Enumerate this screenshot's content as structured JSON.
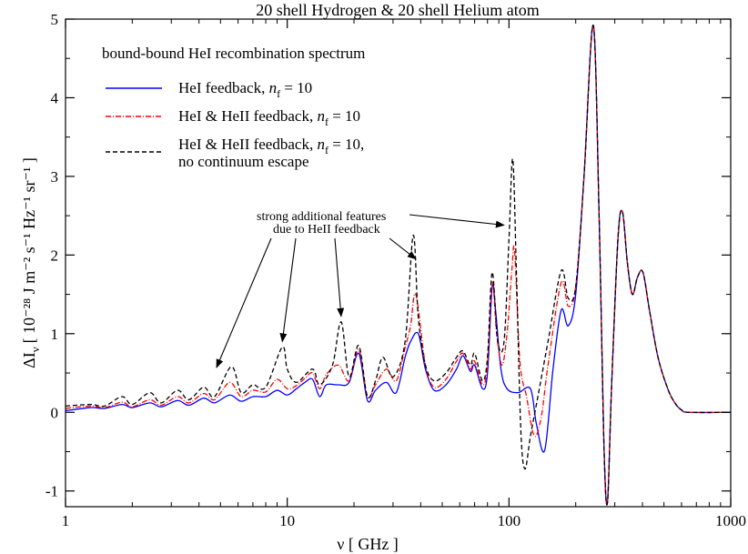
{
  "chart_data": {
    "type": "line",
    "title": "20 shell Hydrogen & 20 shell Helium atom",
    "xlabel": "ν [ GHz ]",
    "ylabel": "ΔI",
    "ylabel_sub": "ν",
    "ylabel_units": "[ 10⁻²⁸ J m⁻² s⁻¹ Hz⁻¹ sr⁻¹ ]",
    "x_scale": "log",
    "xlim": [
      1,
      1000
    ],
    "ylim": [
      -1.2,
      5
    ],
    "x_ticks": [
      1,
      10,
      100,
      1000
    ],
    "x_tick_labels": [
      "1",
      "10",
      "100",
      "1000"
    ],
    "y_ticks": [
      -1,
      0,
      1,
      2,
      3,
      4,
      5
    ],
    "y_tick_labels": [
      "-1",
      "0",
      "1",
      "2",
      "3",
      "4",
      "5"
    ],
    "grid": false,
    "legend": {
      "title": "bound-bound HeI recombination spectrum",
      "placement": "top-left",
      "entries": [
        {
          "pre": "HeI feedback, ",
          "n": "n",
          "sub": "f",
          "post": " = 10",
          "line2": ""
        },
        {
          "pre": "HeI & HeII feedback, ",
          "n": "n",
          "sub": "f",
          "post": " = 10",
          "line2": ""
        },
        {
          "pre": "HeI & HeII feedback, ",
          "n": "n",
          "sub": "f",
          "post": " = 10,",
          "line2": "no continuum escape"
        }
      ]
    },
    "annotation": {
      "line1": "strong additional features",
      "line2": "due to HeII feedback",
      "arrow_targets": [
        {
          "x": 4.8,
          "y": 0.57
        },
        {
          "x": 9.5,
          "y": 0.9
        },
        {
          "x": 17.5,
          "y": 1.22
        },
        {
          "x": 38,
          "y": 1.95
        },
        {
          "x": 95,
          "y": 2.38
        }
      ]
    },
    "series": [
      {
        "name": "HeI feedback, nf = 10",
        "color": "#0000ff",
        "dash": "solid",
        "points": [
          [
            1,
            0.02
          ],
          [
            1.3,
            0.06
          ],
          [
            1.5,
            0.05
          ],
          [
            1.8,
            0.1
          ],
          [
            2,
            0.06
          ],
          [
            2.4,
            0.12
          ],
          [
            2.7,
            0.07
          ],
          [
            3.2,
            0.15
          ],
          [
            3.6,
            0.09
          ],
          [
            4.2,
            0.18
          ],
          [
            4.7,
            0.12
          ],
          [
            5.5,
            0.22
          ],
          [
            6.2,
            0.14
          ],
          [
            7,
            0.2
          ],
          [
            8,
            0.2
          ],
          [
            9,
            0.28
          ],
          [
            10,
            0.22
          ],
          [
            11,
            0.3
          ],
          [
            12,
            0.38
          ],
          [
            13,
            0.42
          ],
          [
            14,
            0.2
          ],
          [
            15,
            0.35
          ],
          [
            17,
            0.35
          ],
          [
            19,
            0.38
          ],
          [
            21,
            0.75
          ],
          [
            23,
            0.15
          ],
          [
            25,
            0.28
          ],
          [
            28,
            0.38
          ],
          [
            31,
            0.25
          ],
          [
            34,
            0.7
          ],
          [
            36,
            0.9
          ],
          [
            39,
            1.0
          ],
          [
            42,
            0.55
          ],
          [
            46,
            0.28
          ],
          [
            52,
            0.35
          ],
          [
            58,
            0.55
          ],
          [
            62,
            0.72
          ],
          [
            67,
            0.52
          ],
          [
            70,
            0.6
          ],
          [
            76,
            0.3
          ],
          [
            80,
            0.5
          ],
          [
            84,
            1.6
          ],
          [
            87,
            1.3
          ],
          [
            92,
            0.55
          ],
          [
            98,
            0.3
          ],
          [
            110,
            0.25
          ],
          [
            125,
            0.3
          ],
          [
            133,
            -0.15
          ],
          [
            145,
            -0.48
          ],
          [
            158,
            0.55
          ],
          [
            172,
            1.3
          ],
          [
            185,
            1.1
          ],
          [
            200,
            1.5
          ],
          [
            218,
            3.0
          ],
          [
            240,
            4.92
          ],
          [
            255,
            2.5
          ],
          [
            268,
            -0.4
          ],
          [
            278,
            -1.15
          ],
          [
            290,
            0.3
          ],
          [
            310,
            2.2
          ],
          [
            325,
            2.55
          ],
          [
            342,
            1.9
          ],
          [
            360,
            1.5
          ],
          [
            380,
            1.72
          ],
          [
            402,
            1.78
          ],
          [
            430,
            1.3
          ],
          [
            470,
            0.7
          ],
          [
            520,
            0.3
          ],
          [
            560,
            0.12
          ],
          [
            600,
            0.03
          ],
          [
            650,
            0.0
          ],
          [
            1000,
            0.0
          ]
        ]
      },
      {
        "name": "HeI & HeII feedback, nf = 10",
        "color": "#ff0000",
        "dash": "dashdot",
        "points": [
          [
            1,
            0.05
          ],
          [
            1.3,
            0.08
          ],
          [
            1.5,
            0.06
          ],
          [
            1.8,
            0.13
          ],
          [
            2,
            0.07
          ],
          [
            2.4,
            0.16
          ],
          [
            2.7,
            0.09
          ],
          [
            3.2,
            0.2
          ],
          [
            3.6,
            0.12
          ],
          [
            4.2,
            0.24
          ],
          [
            4.7,
            0.16
          ],
          [
            5.5,
            0.38
          ],
          [
            6.2,
            0.2
          ],
          [
            7,
            0.28
          ],
          [
            8,
            0.26
          ],
          [
            9,
            0.42
          ],
          [
            10,
            0.3
          ],
          [
            11,
            0.34
          ],
          [
            12,
            0.43
          ],
          [
            13,
            0.5
          ],
          [
            14,
            0.3
          ],
          [
            15,
            0.48
          ],
          [
            17,
            0.6
          ],
          [
            19,
            0.4
          ],
          [
            21,
            0.8
          ],
          [
            23,
            0.2
          ],
          [
            25,
            0.35
          ],
          [
            28,
            0.55
          ],
          [
            31,
            0.4
          ],
          [
            34,
            0.82
          ],
          [
            36,
            1.1
          ],
          [
            38,
            1.5
          ],
          [
            42,
            0.6
          ],
          [
            46,
            0.32
          ],
          [
            52,
            0.42
          ],
          [
            58,
            0.65
          ],
          [
            62,
            0.75
          ],
          [
            67,
            0.55
          ],
          [
            70,
            0.65
          ],
          [
            76,
            0.35
          ],
          [
            80,
            0.6
          ],
          [
            84,
            1.65
          ],
          [
            88,
            1.0
          ],
          [
            93,
            0.6
          ],
          [
            98,
            1.0
          ],
          [
            103,
            1.8
          ],
          [
            106,
            2.05
          ],
          [
            112,
            0.65
          ],
          [
            120,
            0.2
          ],
          [
            130,
            -0.3
          ],
          [
            140,
            -0.05
          ],
          [
            150,
            0.6
          ],
          [
            172,
            1.65
          ],
          [
            185,
            1.35
          ],
          [
            200,
            1.6
          ],
          [
            218,
            3.0
          ],
          [
            240,
            4.92
          ],
          [
            255,
            2.5
          ],
          [
            268,
            -0.4
          ],
          [
            278,
            -1.15
          ],
          [
            290,
            0.3
          ],
          [
            310,
            2.2
          ],
          [
            325,
            2.55
          ],
          [
            342,
            1.9
          ],
          [
            360,
            1.5
          ],
          [
            380,
            1.72
          ],
          [
            402,
            1.78
          ],
          [
            430,
            1.3
          ],
          [
            470,
            0.7
          ],
          [
            520,
            0.3
          ],
          [
            560,
            0.12
          ],
          [
            600,
            0.03
          ],
          [
            650,
            0.0
          ],
          [
            1000,
            0.0
          ]
        ]
      },
      {
        "name": "HeI & HeII feedback, nf = 10, no continuum escape",
        "color": "#000000",
        "dash": "dashed",
        "points": [
          [
            1,
            0.08
          ],
          [
            1.3,
            0.1
          ],
          [
            1.5,
            0.08
          ],
          [
            1.8,
            0.2
          ],
          [
            2,
            0.1
          ],
          [
            2.4,
            0.25
          ],
          [
            2.7,
            0.12
          ],
          [
            3.2,
            0.28
          ],
          [
            3.6,
            0.16
          ],
          [
            4.2,
            0.32
          ],
          [
            4.7,
            0.2
          ],
          [
            5.6,
            0.58
          ],
          [
            6.2,
            0.25
          ],
          [
            7,
            0.35
          ],
          [
            8,
            0.32
          ],
          [
            9.5,
            0.83
          ],
          [
            10,
            0.55
          ],
          [
            11,
            0.38
          ],
          [
            13,
            0.55
          ],
          [
            14,
            0.35
          ],
          [
            16,
            0.6
          ],
          [
            17.5,
            1.15
          ],
          [
            19,
            0.45
          ],
          [
            21,
            0.85
          ],
          [
            23,
            0.2
          ],
          [
            25,
            0.4
          ],
          [
            27,
            0.7
          ],
          [
            30,
            0.45
          ],
          [
            34,
            0.9
          ],
          [
            37,
            2.25
          ],
          [
            39,
            1.2
          ],
          [
            42,
            0.6
          ],
          [
            46,
            0.4
          ],
          [
            52,
            0.5
          ],
          [
            58,
            0.7
          ],
          [
            62,
            0.78
          ],
          [
            67,
            0.6
          ],
          [
            70,
            0.75
          ],
          [
            76,
            0.4
          ],
          [
            80,
            0.7
          ],
          [
            84,
            1.78
          ],
          [
            89,
            0.9
          ],
          [
            95,
            0.9
          ],
          [
            100,
            2.2
          ],
          [
            104,
            3.22
          ],
          [
            108,
            1.8
          ],
          [
            113,
            -0.2
          ],
          [
            118,
            -0.72
          ],
          [
            125,
            -0.3
          ],
          [
            135,
            0.2
          ],
          [
            150,
            0.9
          ],
          [
            172,
            1.8
          ],
          [
            185,
            1.45
          ],
          [
            200,
            1.6
          ],
          [
            218,
            3.0
          ],
          [
            240,
            4.92
          ],
          [
            255,
            2.5
          ],
          [
            268,
            -0.4
          ],
          [
            278,
            -1.15
          ],
          [
            290,
            0.3
          ],
          [
            310,
            2.2
          ],
          [
            325,
            2.55
          ],
          [
            342,
            1.9
          ],
          [
            360,
            1.5
          ],
          [
            380,
            1.72
          ],
          [
            402,
            1.78
          ],
          [
            430,
            1.3
          ],
          [
            470,
            0.7
          ],
          [
            520,
            0.3
          ],
          [
            560,
            0.12
          ],
          [
            600,
            0.03
          ],
          [
            650,
            0.0
          ],
          [
            1000,
            0.0
          ]
        ]
      }
    ]
  }
}
